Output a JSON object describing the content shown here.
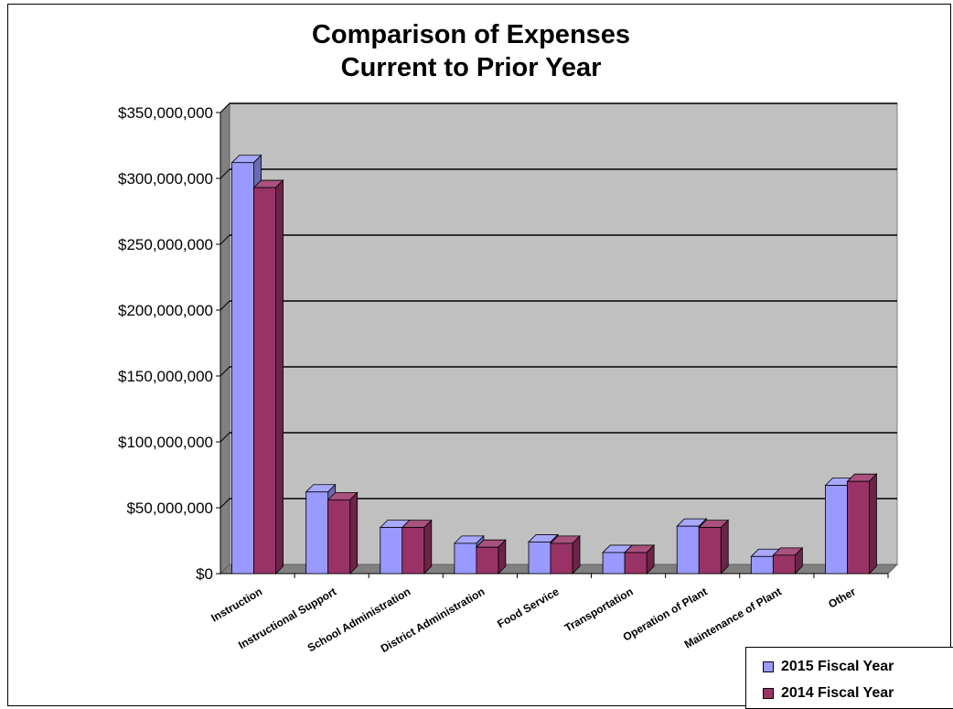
{
  "chart_data": {
    "type": "bar",
    "title_lines": [
      "Comparison of Expenses",
      "Current to Prior Year"
    ],
    "categories": [
      "Instruction",
      "Instructional Support",
      "School Administration",
      "District Administration",
      "Food Service",
      "Transportation",
      "Operation of Plant",
      "Maintenance of Plant",
      "Other"
    ],
    "series": [
      {
        "name": "2015 Fiscal Year",
        "color": "#9999ff",
        "values": [
          312000000,
          62000000,
          35000000,
          23000000,
          24000000,
          16000000,
          36000000,
          13000000,
          67000000
        ]
      },
      {
        "name": "2014 Fiscal Year",
        "color": "#993366",
        "values": [
          293000000,
          56000000,
          35000000,
          20000000,
          23000000,
          16000000,
          35000000,
          14000000,
          70000000
        ]
      }
    ],
    "ylim": [
      0,
      350000000
    ],
    "yticks": [
      0,
      50000000,
      100000000,
      150000000,
      200000000,
      250000000,
      300000000,
      350000000
    ],
    "ytick_labels": [
      "$0",
      "$50,000,000",
      "$100,000,000",
      "$150,000,000",
      "$200,000,000",
      "$250,000,000",
      "$300,000,000",
      "$350,000,000"
    ],
    "grid": true,
    "legend": "bottom-right"
  }
}
